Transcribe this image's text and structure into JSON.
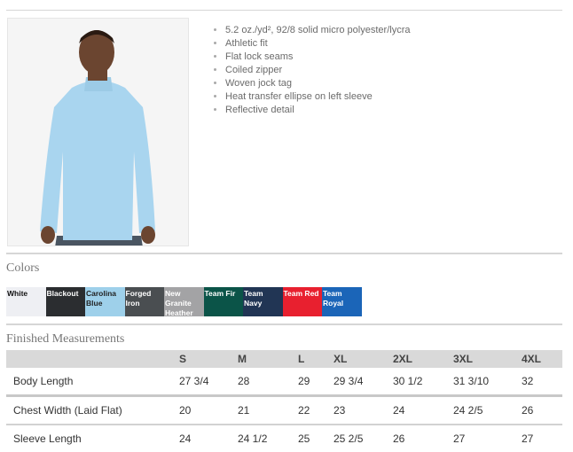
{
  "features": [
    "5.2 oz./yd², 92/8 solid micro polyester/lycra",
    "Athletic fit",
    "Flat lock seams",
    "Coiled zipper",
    "Woven jock tag",
    "Heat transfer ellipse on left sleeve",
    "Reflective detail"
  ],
  "colors_heading": "Colors",
  "colors": [
    {
      "name": "White",
      "hex": "#eeeff3",
      "text": "#111111"
    },
    {
      "name": "Blackout",
      "hex": "#2b2d30",
      "text": "#ffffff"
    },
    {
      "name": "Carolina Blue",
      "hex": "#9ed0ea",
      "text": "#222222"
    },
    {
      "name": "Forged Iron",
      "hex": "#4a4e51",
      "text": "#ffffff"
    },
    {
      "name": "New Granite Heather",
      "hex": "#a3a3a5",
      "text": "#ffffff"
    },
    {
      "name": "Team Fir",
      "hex": "#0b5448",
      "text": "#ffffff"
    },
    {
      "name": "Team Navy",
      "hex": "#213554",
      "text": "#ffffff"
    },
    {
      "name": "Team Red",
      "hex": "#e8202f",
      "text": "#ffffff"
    },
    {
      "name": "Team Royal",
      "hex": "#1b65b8",
      "text": "#ffffff"
    }
  ],
  "measurements_heading": "Finished Measurements",
  "measurements": {
    "sizes": [
      "S",
      "M",
      "L",
      "XL",
      "2XL",
      "3XL",
      "4XL"
    ],
    "rows": [
      {
        "label": "Body Length",
        "values": [
          "27 3/4",
          "28",
          "29",
          "29 3/4",
          "30 1/2",
          "31 3/10",
          "32"
        ]
      },
      {
        "label": "Chest Width (Laid Flat)",
        "values": [
          "20",
          "21",
          "22",
          "23",
          "24",
          "24 2/5",
          "26"
        ]
      },
      {
        "label": "Sleeve Length",
        "values": [
          "24",
          "24 1/2",
          "25",
          "25 2/5",
          "26",
          "27",
          "27"
        ]
      }
    ]
  }
}
